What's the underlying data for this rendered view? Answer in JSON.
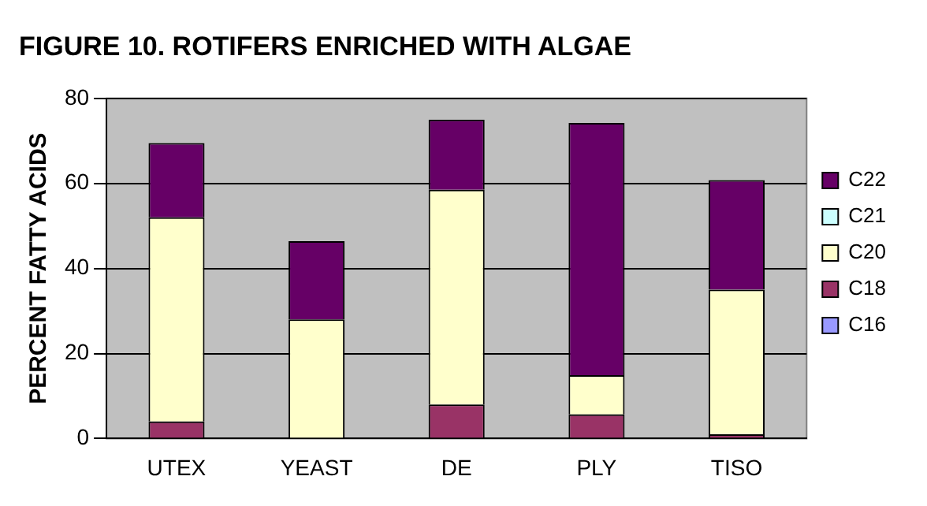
{
  "chart_data": {
    "type": "bar",
    "title": "FIGURE 10. ROTIFERS ENRICHED WITH ALGAE",
    "ylabel": "PERCENT FATTY ACIDS",
    "categories": [
      "UTEX",
      "YEAST",
      "DE",
      "PLY",
      "TISO"
    ],
    "stacked": true,
    "series": [
      {
        "name": "C16",
        "color": "#9999ff",
        "values": [
          0,
          0,
          0,
          0,
          0
        ]
      },
      {
        "name": "C18",
        "color": "#993366",
        "values": [
          4,
          0,
          8,
          5.7,
          1
        ]
      },
      {
        "name": "C20",
        "color": "#ffffcc",
        "values": [
          48,
          28,
          50.5,
          9.2,
          34
        ]
      },
      {
        "name": "C21",
        "color": "#ccffff",
        "values": [
          0,
          0,
          0,
          0,
          0
        ]
      },
      {
        "name": "C22",
        "color": "#660066",
        "values": [
          17.5,
          18.4,
          16.5,
          59.3,
          25.8
        ]
      }
    ],
    "ylim": [
      0,
      80
    ],
    "yticks": [
      0,
      20,
      40,
      60,
      80
    ],
    "grid": "y",
    "legend": "right"
  }
}
